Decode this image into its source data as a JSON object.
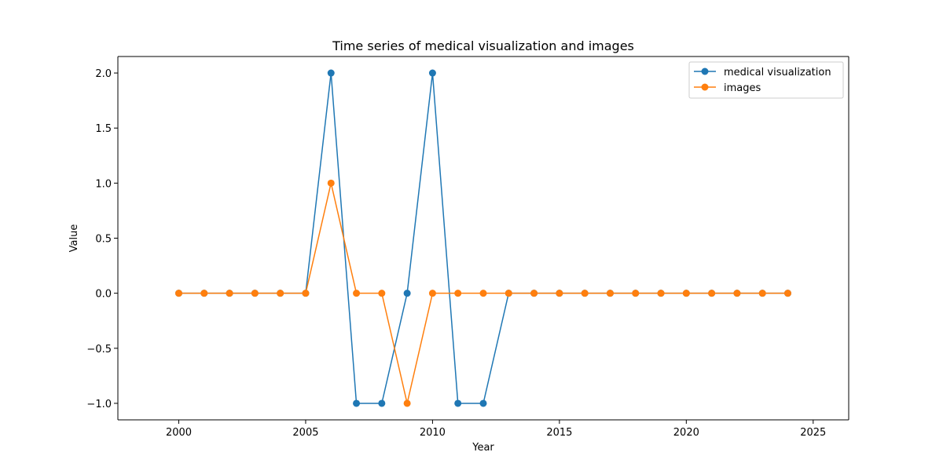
{
  "chart_data": {
    "type": "line",
    "title": "Time series of medical visualization and images",
    "xlabel": "Year",
    "ylabel": "Value",
    "x": [
      2000,
      2001,
      2002,
      2003,
      2004,
      2005,
      2006,
      2007,
      2008,
      2009,
      2010,
      2011,
      2012,
      2013,
      2014,
      2015,
      2016,
      2017,
      2018,
      2019,
      2020,
      2021,
      2022,
      2023,
      2024
    ],
    "xlim": [
      1997.6,
      2026.4
    ],
    "ylim": [
      -1.15,
      2.15
    ],
    "xticks": [
      2000,
      2005,
      2010,
      2015,
      2020,
      2025
    ],
    "xtick_labels": [
      "2000",
      "2005",
      "2010",
      "2015",
      "2020",
      "2025"
    ],
    "yticks": [
      -1.0,
      -0.5,
      0.0,
      0.5,
      1.0,
      1.5,
      2.0
    ],
    "ytick_labels": [
      "−1.0",
      "−0.5",
      "0.0",
      "0.5",
      "1.0",
      "1.5",
      "2.0"
    ],
    "grid": false,
    "legend_position": "upper right",
    "series": [
      {
        "name": "medical visualization",
        "color": "#1f77b4",
        "values": [
          0,
          0,
          0,
          0,
          0,
          0,
          2,
          -1,
          -1,
          0,
          2,
          -1,
          -1,
          0,
          0,
          0,
          0,
          0,
          0,
          0,
          0,
          0,
          0,
          0,
          0
        ]
      },
      {
        "name": "images",
        "color": "#ff7f0e",
        "values": [
          0,
          0,
          0,
          0,
          0,
          0,
          1,
          0,
          0,
          -1,
          0,
          0,
          0,
          0,
          0,
          0,
          0,
          0,
          0,
          0,
          0,
          0,
          0,
          0,
          0
        ]
      }
    ]
  }
}
